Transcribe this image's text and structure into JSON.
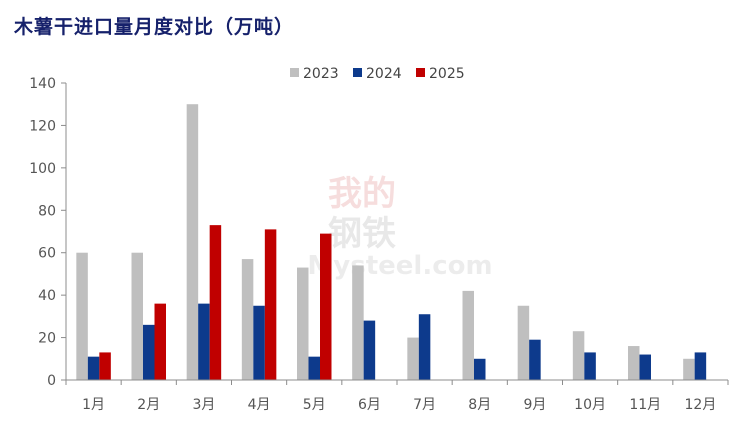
{
  "chart_data": {
    "type": "bar",
    "title": "木薯干进口量月度对比（万吨）",
    "categories": [
      "1月",
      "2月",
      "3月",
      "4月",
      "5月",
      "6月",
      "7月",
      "8月",
      "9月",
      "10月",
      "11月",
      "12月"
    ],
    "series": [
      {
        "name": "2023",
        "color": "#bfbfbf",
        "values": [
          60,
          60,
          130,
          57,
          53,
          54,
          20,
          42,
          35,
          23,
          16,
          10
        ]
      },
      {
        "name": "2024",
        "color": "#0d3a8c",
        "values": [
          11,
          26,
          36,
          35,
          11,
          28,
          31,
          10,
          19,
          13,
          12,
          13
        ]
      },
      {
        "name": "2025",
        "color": "#c00000",
        "values": [
          13,
          36,
          73,
          71,
          69,
          null,
          null,
          null,
          null,
          null,
          null,
          null
        ]
      }
    ],
    "ylim": [
      0,
      140
    ],
    "yticks": [
      0,
      20,
      40,
      60,
      80,
      100,
      120,
      140
    ],
    "xlabel": "",
    "ylabel": "",
    "grid": false,
    "legend_position": "top-center"
  },
  "watermark": {
    "line1": "我的",
    "line2": "钢铁",
    "line3": "Mysteel.com"
  }
}
